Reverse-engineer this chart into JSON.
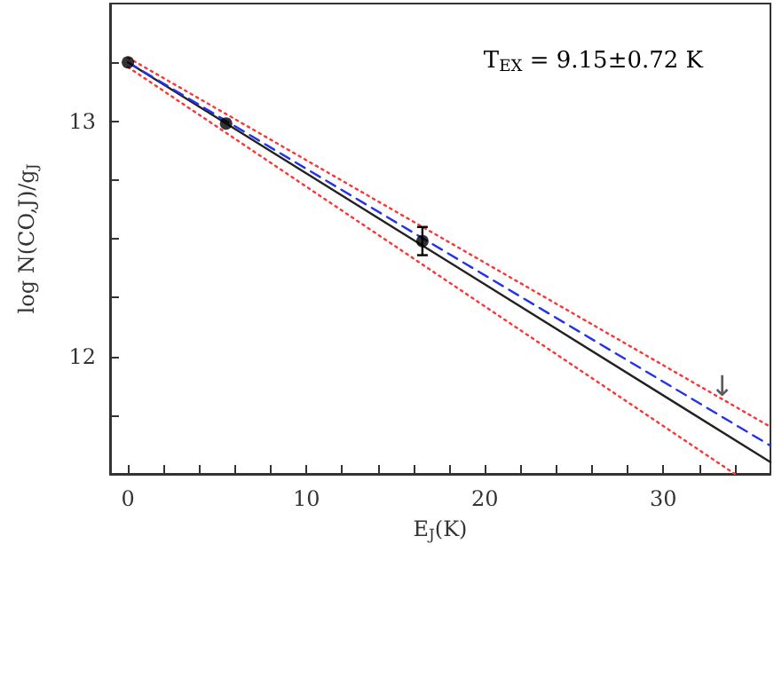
{
  "chart_data": {
    "type": "scatter",
    "xlabel": "E$_{J}$(K)",
    "ylabel": "log N(CO,J)/g$_{J}$",
    "xlim": [
      -1,
      36
    ],
    "ylim": [
      11.5,
      13.5
    ],
    "xticks": [
      0,
      {
        "value": 2,
        "label": null
      },
      {
        "value": 4,
        "label": null
      },
      {
        "value": 6,
        "label": null
      },
      {
        "value": 8,
        "label": null
      },
      10,
      {
        "value": 12,
        "label": null
      },
      {
        "value": 14,
        "label": null
      },
      {
        "value": 16,
        "label": null
      },
      {
        "value": 18,
        "label": null
      },
      20,
      {
        "value": 22,
        "label": null
      },
      {
        "value": 24,
        "label": null
      },
      {
        "value": 26,
        "label": null
      },
      {
        "value": 28,
        "label": null
      },
      30,
      {
        "value": 32,
        "label": null
      },
      {
        "value": 34,
        "label": null
      }
    ],
    "yticks": [
      {
        "value": 11.75,
        "label": null
      },
      12,
      {
        "value": 12.25,
        "label": null
      },
      {
        "value": 12.5,
        "label": null
      },
      {
        "value": 12.75,
        "label": null
      },
      13,
      {
        "value": 13.25,
        "label": null
      }
    ],
    "grid": false,
    "annotations": [
      "T$_{EX}$ = 9.15±0.72 K",
      {
        "text": "↓",
        "x": 33.3,
        "y": 11.8
      }
    ],
    "series": [
      {
        "type": "line",
        "x": [
          0,
          36
        ],
        "values": [
          13.27,
          11.7
        ],
        "color": "#ff3333",
        "line_style": "dotted",
        "marker": "none"
      },
      {
        "type": "line",
        "x": [
          0,
          34
        ],
        "values": [
          13.23,
          11.5
        ],
        "color": "#ff3333",
        "line_style": "dotted",
        "marker": "none"
      },
      {
        "type": "line",
        "x": [
          0,
          36
        ],
        "values": [
          13.25,
          11.55
        ],
        "color": "#222222",
        "line_style": "solid",
        "marker": "none"
      },
      {
        "type": "line",
        "x": [
          0,
          36
        ],
        "values": [
          13.25,
          11.62
        ],
        "color": "#2233ee",
        "line_style": "dashed",
        "marker": "none"
      },
      {
        "x": [
          0,
          5.5,
          16.5
        ],
        "values": [
          13.25,
          12.99,
          12.49
        ],
        "errors": [
          null,
          null,
          0.06
        ],
        "color": "#000000",
        "marker": "circle"
      }
    ]
  }
}
